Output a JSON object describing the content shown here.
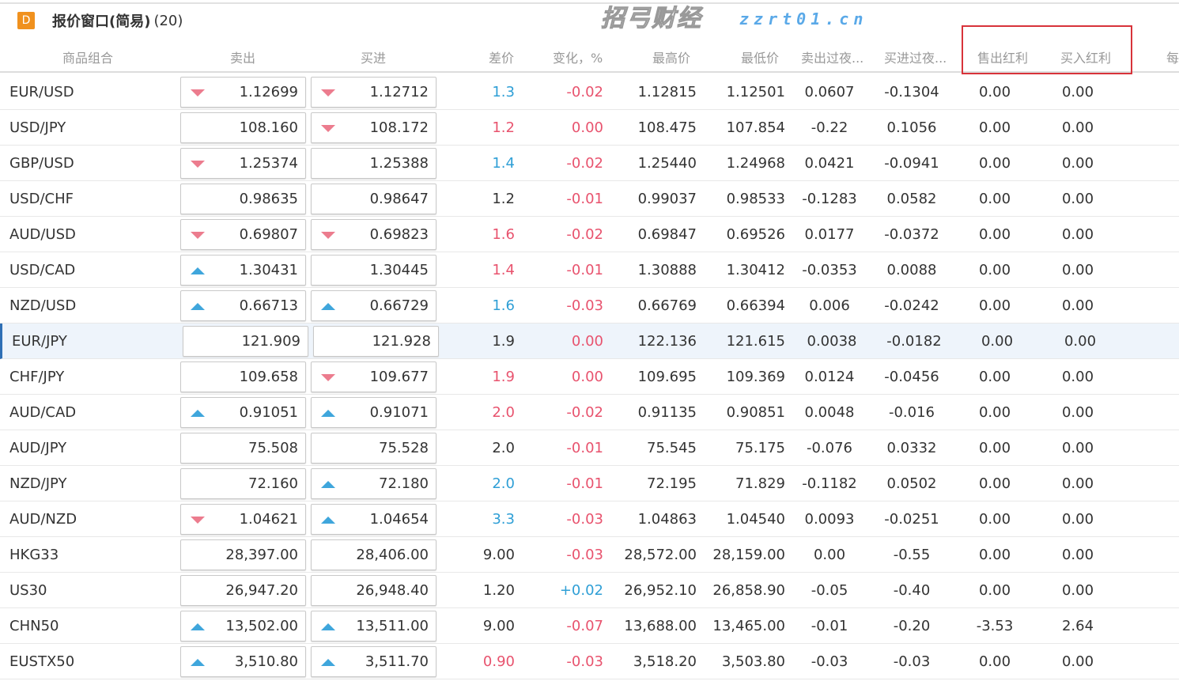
{
  "window": {
    "logo": "D",
    "title": "报价窗口(简易)",
    "count": "(20)"
  },
  "columns": {
    "symbol": "商品组合",
    "sell": "卖出",
    "buy": "买进",
    "spread": "差价",
    "change": "变化，%",
    "high": "最高价",
    "low": "最低价",
    "sell_swap": "卖出过夜...",
    "buy_swap": "买进过夜...",
    "sell_dividend": "售出红利",
    "buy_dividend": "买入红利",
    "per": "每"
  },
  "colors": {
    "up": "#2f9fd6",
    "down": "#e8536e",
    "highlight_box": "#d8333a",
    "logo": "#f0911e"
  },
  "selected_row": "EUR/JPY",
  "rows": [
    {
      "symbol": "EUR/USD",
      "sell": "1.12699",
      "sell_dir": "down",
      "buy": "1.12712",
      "buy_dir": "down",
      "spread": "1.3",
      "spread_dir": "up",
      "change": "-0.02",
      "change_dir": "down",
      "high": "1.12815",
      "low": "1.12501",
      "sell_swap": "0.0607",
      "buy_swap": "-0.1304",
      "sell_div": "0.00",
      "buy_div": "0.00"
    },
    {
      "symbol": "USD/JPY",
      "sell": "108.160",
      "sell_dir": "",
      "buy": "108.172",
      "buy_dir": "down",
      "spread": "1.2",
      "spread_dir": "down",
      "change": "0.00",
      "change_dir": "down",
      "high": "108.475",
      "low": "107.854",
      "sell_swap": "-0.22",
      "buy_swap": "0.1056",
      "sell_div": "0.00",
      "buy_div": "0.00"
    },
    {
      "symbol": "GBP/USD",
      "sell": "1.25374",
      "sell_dir": "down",
      "buy": "1.25388",
      "buy_dir": "",
      "spread": "1.4",
      "spread_dir": "up",
      "change": "-0.02",
      "change_dir": "down",
      "high": "1.25440",
      "low": "1.24968",
      "sell_swap": "0.0421",
      "buy_swap": "-0.0941",
      "sell_div": "0.00",
      "buy_div": "0.00"
    },
    {
      "symbol": "USD/CHF",
      "sell": "0.98635",
      "sell_dir": "",
      "buy": "0.98647",
      "buy_dir": "",
      "spread": "1.2",
      "spread_dir": "neutral",
      "change": "-0.01",
      "change_dir": "down",
      "high": "0.99037",
      "low": "0.98533",
      "sell_swap": "-0.1283",
      "buy_swap": "0.0582",
      "sell_div": "0.00",
      "buy_div": "0.00"
    },
    {
      "symbol": "AUD/USD",
      "sell": "0.69807",
      "sell_dir": "down",
      "buy": "0.69823",
      "buy_dir": "down",
      "spread": "1.6",
      "spread_dir": "down",
      "change": "-0.02",
      "change_dir": "down",
      "high": "0.69847",
      "low": "0.69526",
      "sell_swap": "0.0177",
      "buy_swap": "-0.0372",
      "sell_div": "0.00",
      "buy_div": "0.00"
    },
    {
      "symbol": "USD/CAD",
      "sell": "1.30431",
      "sell_dir": "up",
      "buy": "1.30445",
      "buy_dir": "",
      "spread": "1.4",
      "spread_dir": "down",
      "change": "-0.01",
      "change_dir": "down",
      "high": "1.30888",
      "low": "1.30412",
      "sell_swap": "-0.0353",
      "buy_swap": "0.0088",
      "sell_div": "0.00",
      "buy_div": "0.00"
    },
    {
      "symbol": "NZD/USD",
      "sell": "0.66713",
      "sell_dir": "up",
      "buy": "0.66729",
      "buy_dir": "up",
      "spread": "1.6",
      "spread_dir": "up",
      "change": "-0.03",
      "change_dir": "down",
      "high": "0.66769",
      "low": "0.66394",
      "sell_swap": "0.006",
      "buy_swap": "-0.0242",
      "sell_div": "0.00",
      "buy_div": "0.00"
    },
    {
      "symbol": "EUR/JPY",
      "sell": "121.909",
      "sell_dir": "",
      "buy": "121.928",
      "buy_dir": "",
      "spread": "1.9",
      "spread_dir": "neutral",
      "change": "0.00",
      "change_dir": "down",
      "high": "122.136",
      "low": "121.615",
      "sell_swap": "0.0038",
      "buy_swap": "-0.0182",
      "sell_div": "0.00",
      "buy_div": "0.00"
    },
    {
      "symbol": "CHF/JPY",
      "sell": "109.658",
      "sell_dir": "",
      "buy": "109.677",
      "buy_dir": "down",
      "spread": "1.9",
      "spread_dir": "down",
      "change": "0.00",
      "change_dir": "down",
      "high": "109.695",
      "low": "109.369",
      "sell_swap": "0.0124",
      "buy_swap": "-0.0456",
      "sell_div": "0.00",
      "buy_div": "0.00"
    },
    {
      "symbol": "AUD/CAD",
      "sell": "0.91051",
      "sell_dir": "up",
      "buy": "0.91071",
      "buy_dir": "up",
      "spread": "2.0",
      "spread_dir": "down",
      "change": "-0.02",
      "change_dir": "down",
      "high": "0.91135",
      "low": "0.90851",
      "sell_swap": "0.0048",
      "buy_swap": "-0.016",
      "sell_div": "0.00",
      "buy_div": "0.00"
    },
    {
      "symbol": "AUD/JPY",
      "sell": "75.508",
      "sell_dir": "",
      "buy": "75.528",
      "buy_dir": "",
      "spread": "2.0",
      "spread_dir": "neutral",
      "change": "-0.01",
      "change_dir": "down",
      "high": "75.545",
      "low": "75.175",
      "sell_swap": "-0.076",
      "buy_swap": "0.0332",
      "sell_div": "0.00",
      "buy_div": "0.00"
    },
    {
      "symbol": "NZD/JPY",
      "sell": "72.160",
      "sell_dir": "",
      "buy": "72.180",
      "buy_dir": "up",
      "spread": "2.0",
      "spread_dir": "up",
      "change": "-0.01",
      "change_dir": "down",
      "high": "72.195",
      "low": "71.829",
      "sell_swap": "-0.1182",
      "buy_swap": "0.0502",
      "sell_div": "0.00",
      "buy_div": "0.00"
    },
    {
      "symbol": "AUD/NZD",
      "sell": "1.04621",
      "sell_dir": "down",
      "buy": "1.04654",
      "buy_dir": "up",
      "spread": "3.3",
      "spread_dir": "up",
      "change": "-0.03",
      "change_dir": "down",
      "high": "1.04863",
      "low": "1.04540",
      "sell_swap": "0.0093",
      "buy_swap": "-0.0251",
      "sell_div": "0.00",
      "buy_div": "0.00"
    },
    {
      "symbol": "HKG33",
      "sell": "28,397.00",
      "sell_dir": "",
      "buy": "28,406.00",
      "buy_dir": "",
      "spread": "9.00",
      "spread_dir": "neutral",
      "change": "-0.03",
      "change_dir": "down",
      "high": "28,572.00",
      "low": "28,159.00",
      "sell_swap": "0.00",
      "buy_swap": "-0.55",
      "sell_div": "0.00",
      "buy_div": "0.00"
    },
    {
      "symbol": "US30",
      "sell": "26,947.20",
      "sell_dir": "",
      "buy": "26,948.40",
      "buy_dir": "",
      "spread": "1.20",
      "spread_dir": "neutral",
      "change": "+0.02",
      "change_dir": "up",
      "high": "26,952.10",
      "low": "26,858.90",
      "sell_swap": "-0.05",
      "buy_swap": "-0.40",
      "sell_div": "0.00",
      "buy_div": "0.00"
    },
    {
      "symbol": "CHN50",
      "sell": "13,502.00",
      "sell_dir": "up",
      "buy": "13,511.00",
      "buy_dir": "up",
      "spread": "9.00",
      "spread_dir": "neutral",
      "change": "-0.07",
      "change_dir": "down",
      "high": "13,688.00",
      "low": "13,465.00",
      "sell_swap": "-0.01",
      "buy_swap": "-0.20",
      "sell_div": "-3.53",
      "buy_div": "2.64"
    },
    {
      "symbol": "EUSTX50",
      "sell": "3,510.80",
      "sell_dir": "up",
      "buy": "3,511.70",
      "buy_dir": "up",
      "spread": "0.90",
      "spread_dir": "down",
      "change": "-0.03",
      "change_dir": "down",
      "high": "3,518.20",
      "low": "3,503.80",
      "sell_swap": "-0.03",
      "buy_swap": "-0.03",
      "sell_div": "0.00",
      "buy_div": "0.00"
    }
  ],
  "watermark": {
    "text": "招弓财经",
    "url": "zzrt01.cn"
  }
}
